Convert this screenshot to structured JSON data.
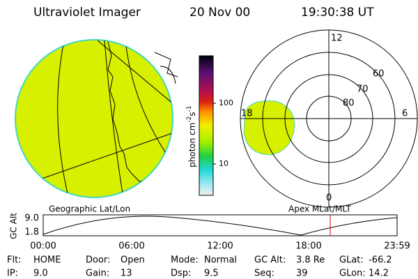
{
  "header": {
    "instrument": "Ultraviolet Imager",
    "date": "20 Nov 00",
    "time": "19:30:38 UT"
  },
  "colorbar": {
    "unit_parts": [
      "photon cm",
      "-2",
      "s",
      "-1"
    ],
    "ticks": [
      "100",
      "10"
    ]
  },
  "polar": {
    "mlt_labels": [
      "12",
      "6",
      "0",
      "18"
    ],
    "ring_labels": [
      "60",
      "70",
      "80"
    ]
  },
  "captions": {
    "left": "Geographic Lat/Lon",
    "right": "Apex MLat/MLT"
  },
  "altitude": {
    "axis_label": "GC Alt",
    "yticks": [
      "9.0",
      "1.8"
    ],
    "xticks": [
      "00:00",
      "06:00",
      "12:00",
      "18:00",
      "23:59"
    ]
  },
  "info": {
    "rows": [
      [
        [
          "Flt:",
          "HOME"
        ],
        [
          "Door:",
          "Open"
        ],
        [
          "Mode:",
          "Normal"
        ],
        [
          "GC Alt:",
          "3.8 Re"
        ],
        [
          "GLat:",
          "-66.2"
        ]
      ],
      [
        [
          "IP:",
          "9.0"
        ],
        [
          "Gain:",
          "13"
        ],
        [
          "Dsp:",
          "9.5"
        ],
        [
          "Seq:",
          "39"
        ],
        [
          "GLon:",
          "14.2"
        ]
      ]
    ]
  }
}
